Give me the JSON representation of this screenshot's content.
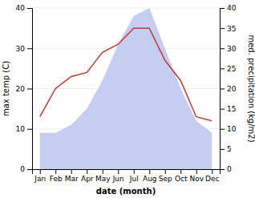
{
  "chart_data": {
    "type": "line",
    "categories": [
      "Jan",
      "Feb",
      "Mar",
      "Apr",
      "May",
      "Jun",
      "Jul",
      "Aug",
      "Sep",
      "Oct",
      "Nov",
      "Dec"
    ],
    "series": [
      {
        "type": "area",
        "color": "#c5cef0",
        "axis": "y2",
        "values": [
          9,
          9,
          11,
          15,
          22,
          31,
          38,
          40,
          30,
          20,
          12,
          9
        ]
      },
      {
        "type": "line",
        "color": "#c0392b",
        "values": [
          13,
          20,
          23,
          24,
          29,
          31,
          35,
          35,
          27,
          22,
          13,
          12
        ]
      }
    ],
    "xlabel": "date (month)",
    "ylabel": "max temp (C)",
    "y2label": "med. precipitation (kg/m2)",
    "ylim": [
      0,
      40
    ],
    "yticks": [
      0,
      10,
      20,
      30,
      40
    ],
    "y2lim": [
      0,
      40
    ],
    "y2ticks": [
      0,
      5,
      10,
      15,
      20,
      25,
      30,
      35,
      40
    ],
    "grid": true
  }
}
